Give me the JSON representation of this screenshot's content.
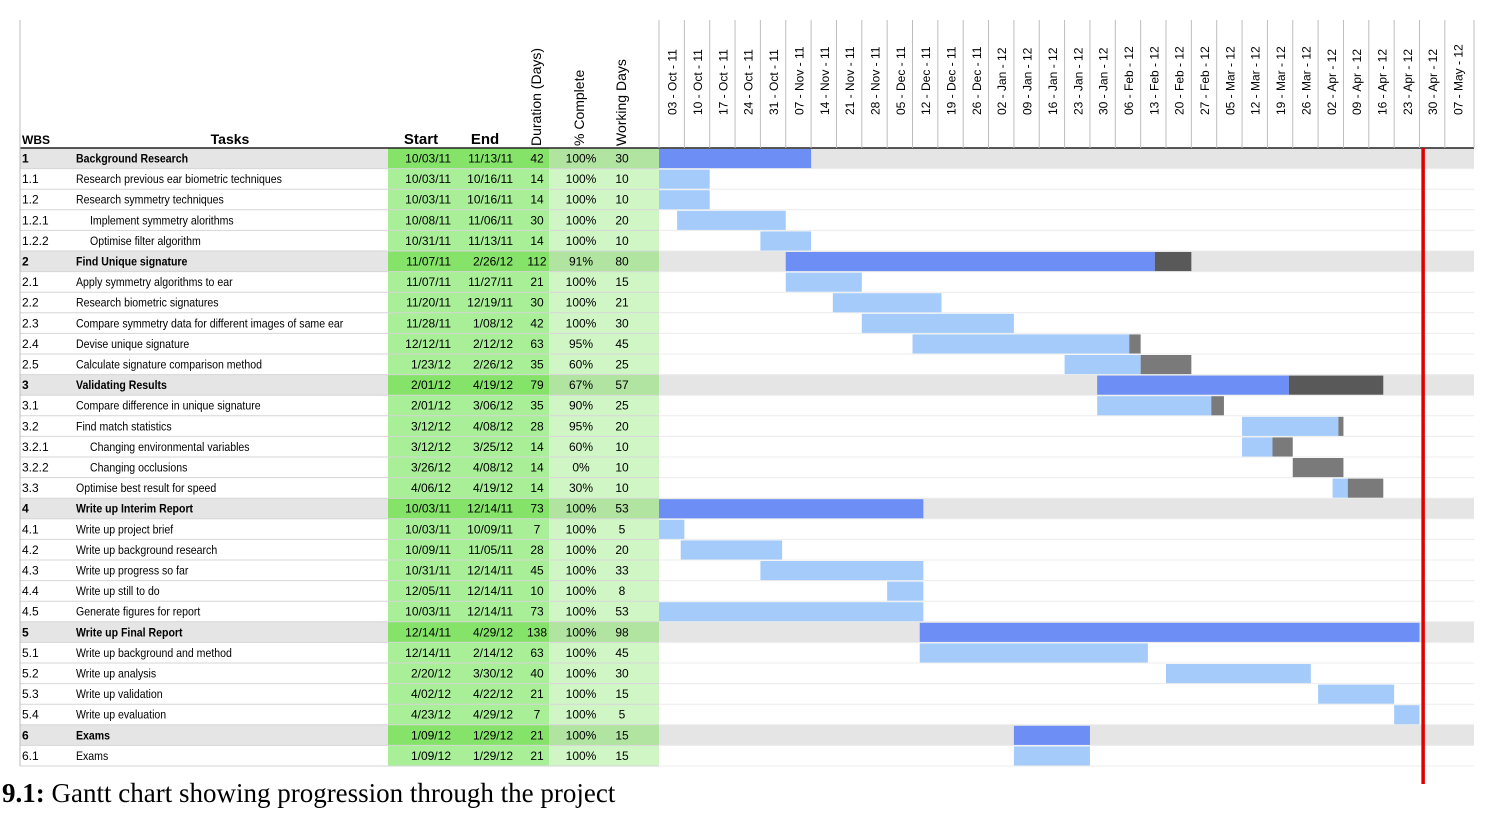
{
  "headers": {
    "wbs": "WBS",
    "tasks": "Tasks",
    "start": "Start",
    "end": "End",
    "duration": "Duration (Days)",
    "complete": "% Complete",
    "working": "Working Days"
  },
  "caption": {
    "label": "9.1:",
    "text": "Gantt chart showing progression through the project"
  },
  "colors": {
    "summary_bar": "#6c8ef5",
    "task_bar": "#a5cbfb",
    "remaining_bar": "#7a7a7a",
    "summary_remaining_bar": "#595959",
    "date_cell": "#a9ef98",
    "summary_date_cell": "#86e36a",
    "summary_row_bg": "#e5e5e5",
    "today_line": "#e00000"
  },
  "chart_data": {
    "type": "gantt",
    "timeline_weeks": [
      "03 - Oct - 11",
      "10 - Oct - 11",
      "17 - Oct - 11",
      "24 - Oct - 11",
      "31 - Oct - 11",
      "07 - Nov - 11",
      "14 - Nov - 11",
      "21 - Nov - 11",
      "28 - Nov - 11",
      "05 - Dec - 11",
      "12 - Dec - 11",
      "19 - Dec - 11",
      "26 - Dec - 11",
      "02 - Jan - 12",
      "09 - Jan - 12",
      "16 - Jan - 12",
      "23 - Jan - 12",
      "30 - Jan - 12",
      "06 - Feb - 12",
      "13 - Feb - 12",
      "20 - Feb - 12",
      "27 - Feb - 12",
      "05 - Mar - 12",
      "12 - Mar - 12",
      "19 - Mar - 12",
      "26 - Mar - 12",
      "02 - Apr - 12",
      "09 - Apr - 12",
      "16 - Apr - 12",
      "23 - Apr - 12",
      "30 - Apr - 12",
      "07 - May - 12"
    ],
    "timeline_start": "2011-10-03",
    "today_marker": "2012-05-01",
    "tasks": [
      {
        "wbs": "1",
        "task": "Background Research",
        "start": "10/03/11",
        "end": "11/13/11",
        "duration": 42,
        "complete": "100%",
        "working": 30,
        "summary": true,
        "indent": 0
      },
      {
        "wbs": "1.1",
        "task": "Research previous ear biometric techniques",
        "start": "10/03/11",
        "end": "10/16/11",
        "duration": 14,
        "complete": "100%",
        "working": 10,
        "summary": false,
        "indent": 0
      },
      {
        "wbs": "1.2",
        "task": "Research symmetry techniques",
        "start": "10/03/11",
        "end": "10/16/11",
        "duration": 14,
        "complete": "100%",
        "working": 10,
        "summary": false,
        "indent": 0
      },
      {
        "wbs": "1.2.1",
        "task": "Implement symmetry alorithms",
        "start": "10/08/11",
        "end": "11/06/11",
        "duration": 30,
        "complete": "100%",
        "working": 20,
        "summary": false,
        "indent": 1
      },
      {
        "wbs": "1.2.2",
        "task": "Optimise filter algorithm",
        "start": "10/31/11",
        "end": "11/13/11",
        "duration": 14,
        "complete": "100%",
        "working": 10,
        "summary": false,
        "indent": 1
      },
      {
        "wbs": "2",
        "task": "Find Unique signature",
        "start": "11/07/11",
        "end": "2/26/12",
        "duration": 112,
        "complete": "91%",
        "working": 80,
        "summary": true,
        "indent": 0
      },
      {
        "wbs": "2.1",
        "task": "Apply symmetry algorithms to ear",
        "start": "11/07/11",
        "end": "11/27/11",
        "duration": 21,
        "complete": "100%",
        "working": 15,
        "summary": false,
        "indent": 0
      },
      {
        "wbs": "2.2",
        "task": "Research biometric signatures",
        "start": "11/20/11",
        "end": "12/19/11",
        "duration": 30,
        "complete": "100%",
        "working": 21,
        "summary": false,
        "indent": 0
      },
      {
        "wbs": "2.3",
        "task": "Compare symmetry data for different images of same ear",
        "start": "11/28/11",
        "end": "1/08/12",
        "duration": 42,
        "complete": "100%",
        "working": 30,
        "summary": false,
        "indent": 0
      },
      {
        "wbs": "2.4",
        "task": "Devise unique signature",
        "start": "12/12/11",
        "end": "2/12/12",
        "duration": 63,
        "complete": "95%",
        "working": 45,
        "summary": false,
        "indent": 0
      },
      {
        "wbs": "2.5",
        "task": "Calculate signature comparison method",
        "start": "1/23/12",
        "end": "2/26/12",
        "duration": 35,
        "complete": "60%",
        "working": 25,
        "summary": false,
        "indent": 0
      },
      {
        "wbs": "3",
        "task": "Validating Results",
        "start": "2/01/12",
        "end": "4/19/12",
        "duration": 79,
        "complete": "67%",
        "working": 57,
        "summary": true,
        "indent": 0
      },
      {
        "wbs": "3.1",
        "task": "Compare difference in unique signature",
        "start": "2/01/12",
        "end": "3/06/12",
        "duration": 35,
        "complete": "90%",
        "working": 25,
        "summary": false,
        "indent": 0
      },
      {
        "wbs": "3.2",
        "task": "Find match statistics",
        "start": "3/12/12",
        "end": "4/08/12",
        "duration": 28,
        "complete": "95%",
        "working": 20,
        "summary": false,
        "indent": 0
      },
      {
        "wbs": "3.2.1",
        "task": "Changing environmental variables",
        "start": "3/12/12",
        "end": "3/25/12",
        "duration": 14,
        "complete": "60%",
        "working": 10,
        "summary": false,
        "indent": 1
      },
      {
        "wbs": "3.2.2",
        "task": "Changing occlusions",
        "start": "3/26/12",
        "end": "4/08/12",
        "duration": 14,
        "complete": "0%",
        "working": 10,
        "summary": false,
        "indent": 1
      },
      {
        "wbs": "3.3",
        "task": "Optimise best result for speed",
        "start": "4/06/12",
        "end": "4/19/12",
        "duration": 14,
        "complete": "30%",
        "working": 10,
        "summary": false,
        "indent": 0
      },
      {
        "wbs": "4",
        "task": "Write up Interim Report",
        "start": "10/03/11",
        "end": "12/14/11",
        "duration": 73,
        "complete": "100%",
        "working": 53,
        "summary": true,
        "indent": 0
      },
      {
        "wbs": "4.1",
        "task": "Write up project brief",
        "start": "10/03/11",
        "end": "10/09/11",
        "duration": 7,
        "complete": "100%",
        "working": 5,
        "summary": false,
        "indent": 0
      },
      {
        "wbs": "4.2",
        "task": "Write up background research",
        "start": "10/09/11",
        "end": "11/05/11",
        "duration": 28,
        "complete": "100%",
        "working": 20,
        "summary": false,
        "indent": 0
      },
      {
        "wbs": "4.3",
        "task": "Write up progress so far",
        "start": "10/31/11",
        "end": "12/14/11",
        "duration": 45,
        "complete": "100%",
        "working": 33,
        "summary": false,
        "indent": 0
      },
      {
        "wbs": "4.4",
        "task": "Write up still to do",
        "start": "12/05/11",
        "end": "12/14/11",
        "duration": 10,
        "complete": "100%",
        "working": 8,
        "summary": false,
        "indent": 0
      },
      {
        "wbs": "4.5",
        "task": "Generate figures for report",
        "start": "10/03/11",
        "end": "12/14/11",
        "duration": 73,
        "complete": "100%",
        "working": 53,
        "summary": false,
        "indent": 0
      },
      {
        "wbs": "5",
        "task": "Write up Final Report",
        "start": "12/14/11",
        "end": "4/29/12",
        "duration": 138,
        "complete": "100%",
        "working": 98,
        "summary": true,
        "indent": 0
      },
      {
        "wbs": "5.1",
        "task": "Write up background and method",
        "start": "12/14/11",
        "end": "2/14/12",
        "duration": 63,
        "complete": "100%",
        "working": 45,
        "summary": false,
        "indent": 0
      },
      {
        "wbs": "5.2",
        "task": "Write up analysis",
        "start": "2/20/12",
        "end": "3/30/12",
        "duration": 40,
        "complete": "100%",
        "working": 30,
        "summary": false,
        "indent": 0
      },
      {
        "wbs": "5.3",
        "task": "Write up validation",
        "start": "4/02/12",
        "end": "4/22/12",
        "duration": 21,
        "complete": "100%",
        "working": 15,
        "summary": false,
        "indent": 0
      },
      {
        "wbs": "5.4",
        "task": "Write up evaluation",
        "start": "4/23/12",
        "end": "4/29/12",
        "duration": 7,
        "complete": "100%",
        "working": 5,
        "summary": false,
        "indent": 0
      },
      {
        "wbs": "6",
        "task": "Exams",
        "start": "1/09/12",
        "end": "1/29/12",
        "duration": 21,
        "complete": "100%",
        "working": 15,
        "summary": true,
        "indent": 0
      },
      {
        "wbs": "6.1",
        "task": "Exams",
        "start": "1/09/12",
        "end": "1/29/12",
        "duration": 21,
        "complete": "100%",
        "working": 15,
        "summary": false,
        "indent": 0
      }
    ]
  }
}
